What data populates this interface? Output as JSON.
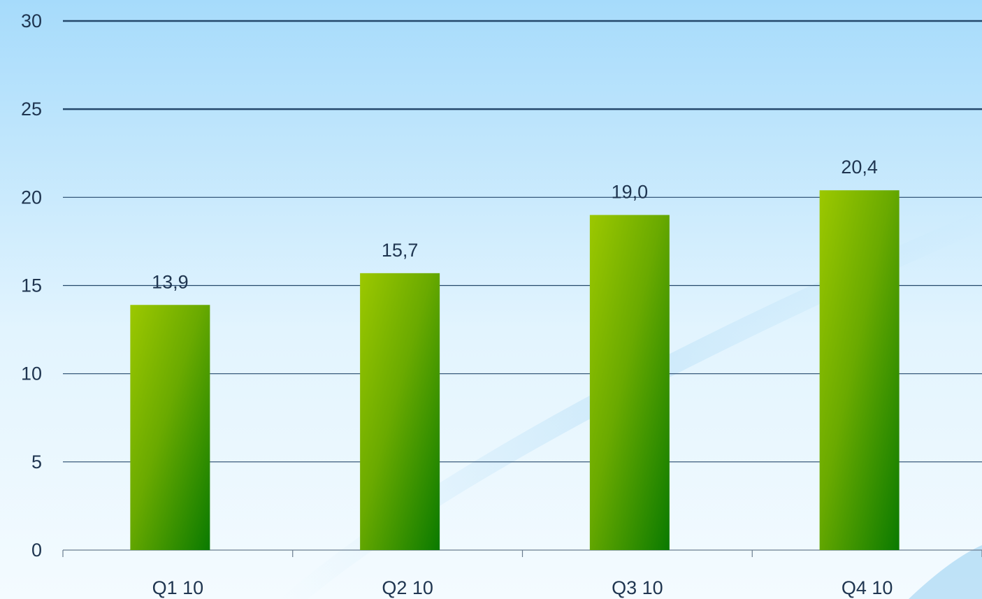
{
  "chart_data": {
    "type": "bar",
    "categories": [
      "Q1 10",
      "Q2 10",
      "Q3 10",
      "Q4 10"
    ],
    "values": [
      13.9,
      15.7,
      19.0,
      20.4
    ],
    "data_labels": [
      "13,9",
      "15,7",
      "19,0",
      "20,4"
    ],
    "y_ticks": [
      0,
      5,
      10,
      15,
      20,
      25,
      30
    ],
    "ylim": [
      0,
      30
    ],
    "grid": true,
    "legend": "none",
    "colors": {
      "bar_top": "#9cc800",
      "bar_bottom": "#0a7a00",
      "gridline": "#24486b",
      "text": "#1f3550",
      "background_top": "#a8dcfb",
      "background_bottom": "#f4fbff"
    }
  }
}
